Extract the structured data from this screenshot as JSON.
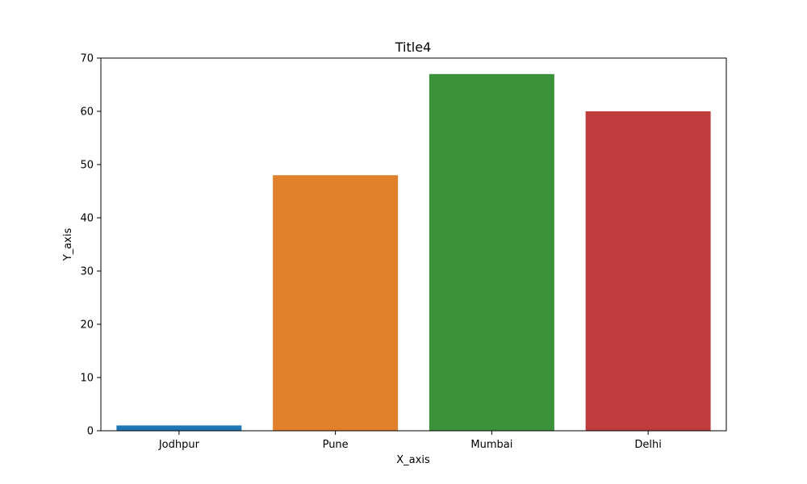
{
  "chart_data": {
    "type": "bar",
    "title": "Title4",
    "xlabel": "X_axis",
    "ylabel": "Y_axis",
    "categories": [
      "Jodhpur",
      "Pune",
      "Mumbai",
      "Delhi"
    ],
    "values": [
      1,
      48,
      67,
      60
    ],
    "colors": [
      "#1f77b4",
      "#e1812c",
      "#3a923a",
      "#c03d3e"
    ],
    "ylim": [
      0,
      70
    ],
    "yticks": [
      0,
      10,
      20,
      30,
      40,
      50,
      60,
      70
    ],
    "grid": false
  }
}
